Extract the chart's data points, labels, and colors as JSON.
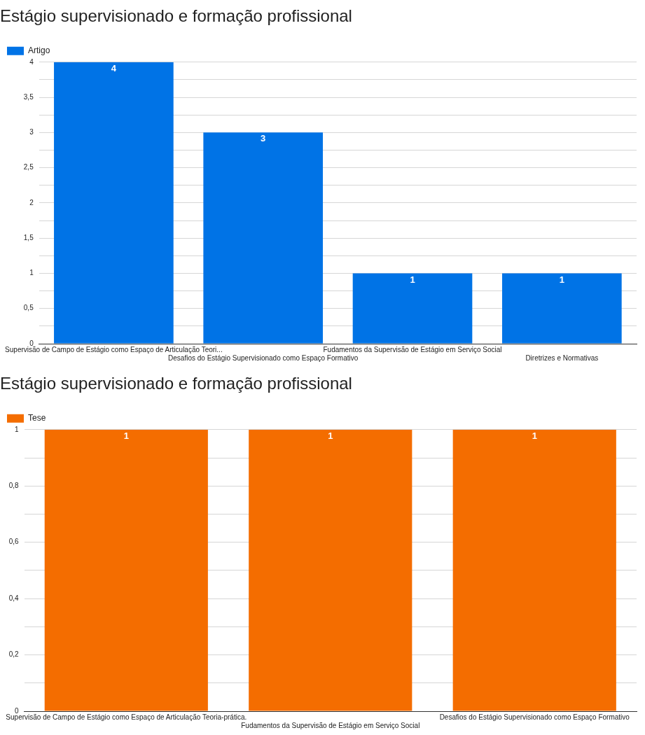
{
  "chart_data": [
    {
      "type": "bar",
      "title": "Estágio supervisionado e formação profissional",
      "categories": [
        "Supervisão de Campo de Estágio como Espaço de Articulação Teori...",
        "Desafios do Estágio Supervisionado como Espaço Formativo",
        "Fudamentos da Supervisão de Estágio em Serviço Social",
        "Diretrizes e Normativas"
      ],
      "series": [
        {
          "name": "Artigo",
          "color": "#0073e6",
          "values": [
            4,
            3,
            1,
            1
          ]
        }
      ],
      "ylim": [
        0,
        4
      ],
      "yticks": [
        0,
        {
          "value": 0.25,
          "label": null
        },
        {
          "value": 0.5,
          "label": "0,5"
        },
        {
          "value": 0.75,
          "label": null
        },
        1,
        {
          "value": 1.25,
          "label": null
        },
        {
          "value": 1.5,
          "label": "1,5"
        },
        {
          "value": 1.75,
          "label": null
        },
        2,
        {
          "value": 2.25,
          "label": null
        },
        {
          "value": 2.5,
          "label": "2,5"
        },
        {
          "value": 2.75,
          "label": null
        },
        3,
        {
          "value": 3.25,
          "label": null
        },
        {
          "value": 3.5,
          "label": "3,5"
        },
        {
          "value": 3.75,
          "label": null
        },
        4
      ],
      "grid": "y",
      "legend": "top left",
      "data_labels": true
    },
    {
      "type": "bar",
      "title": "Estágio supervisionado e formação profissional",
      "categories": [
        "Supervisão de Campo de Estágio como Espaço de Articulação Teoria-prática.",
        "Fudamentos da Supervisão de Estágio em Serviço Social",
        "Desafios do Estágio Supervisionado como Espaço Formativo"
      ],
      "series": [
        {
          "name": "Tese",
          "color": "#f46d00",
          "values": [
            1,
            1,
            1
          ]
        }
      ],
      "ylim": [
        0,
        1
      ],
      "yticks": [
        0,
        {
          "value": 0.1,
          "label": null
        },
        {
          "value": 0.2,
          "label": "0,2"
        },
        {
          "value": 0.3,
          "label": null
        },
        {
          "value": 0.4,
          "label": "0,4"
        },
        {
          "value": 0.5,
          "label": null
        },
        {
          "value": 0.6,
          "label": "0,6"
        },
        {
          "value": 0.7,
          "label": null
        },
        {
          "value": 0.8,
          "label": "0,8"
        },
        {
          "value": 0.9,
          "label": null
        },
        1
      ],
      "grid": "y",
      "legend": "top left",
      "data_labels": true
    }
  ]
}
